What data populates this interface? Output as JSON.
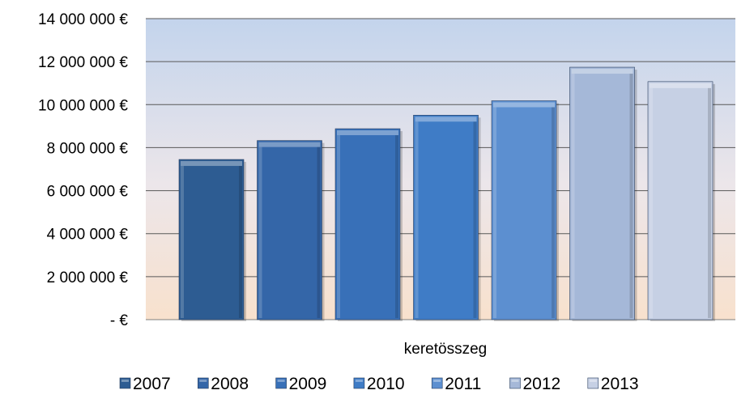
{
  "chart_data": {
    "type": "bar",
    "title": "",
    "xlabel": "",
    "ylabel": "",
    "category_label": "keretösszeg",
    "ylim": [
      0,
      14000000
    ],
    "yticks": [
      {
        "value": 0,
        "label": "-   €"
      },
      {
        "value": 2000000,
        "label": "2 000 000 €"
      },
      {
        "value": 4000000,
        "label": "4 000 000 €"
      },
      {
        "value": 6000000,
        "label": "6 000 000 €"
      },
      {
        "value": 8000000,
        "label": "8 000 000 €"
      },
      {
        "value": 10000000,
        "label": "10 000 000 €"
      },
      {
        "value": 12000000,
        "label": "12 000 000 €"
      },
      {
        "value": 14000000,
        "label": "14 000 000 €"
      }
    ],
    "grid": true,
    "legend_position": "bottom",
    "series": [
      {
        "name": "2007",
        "value": 7450000,
        "color": "#2d5c92"
      },
      {
        "name": "2008",
        "value": 8330000,
        "color": "#3466a8"
      },
      {
        "name": "2009",
        "value": 8880000,
        "color": "#3870b8"
      },
      {
        "name": "2010",
        "value": 9510000,
        "color": "#3f7cc6"
      },
      {
        "name": "2011",
        "value": 10180000,
        "color": "#5c8fd0"
      },
      {
        "name": "2012",
        "value": 11740000,
        "color": "#a5b8d8"
      },
      {
        "name": "2013",
        "value": 11070000,
        "color": "#c6d0e4"
      }
    ]
  }
}
